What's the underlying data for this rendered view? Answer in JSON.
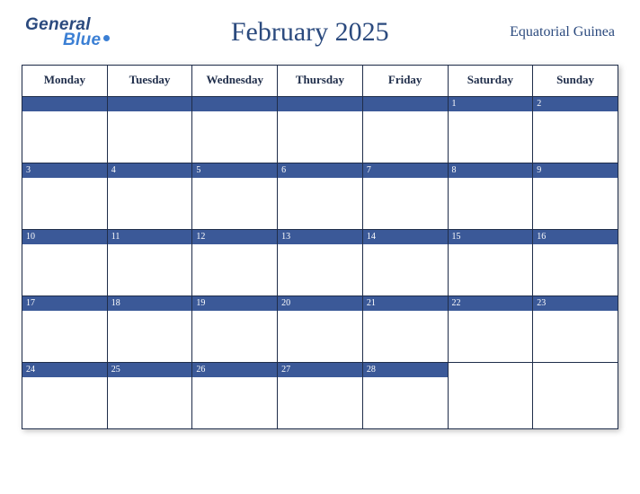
{
  "brand": {
    "top": "General",
    "bottom": "Blue"
  },
  "title": "February 2025",
  "country": "Equatorial Guinea",
  "style": {
    "barColor": "#3b5998",
    "borderColor": "#1f2d4a",
    "titleColor": "#2b4a7e",
    "brandTopColor": "#2b4a7e",
    "brandBottomColor": "#3b7fd4",
    "cellBg": "#ffffff",
    "titleFontSize": 30,
    "dayHeaderFontSize": 13,
    "dateFontSize": 10
  },
  "dayHeaders": [
    "Monday",
    "Tuesday",
    "Wednesday",
    "Thursday",
    "Friday",
    "Saturday",
    "Sunday"
  ],
  "weeks": [
    [
      null,
      null,
      null,
      null,
      null,
      1,
      2
    ],
    [
      3,
      4,
      5,
      6,
      7,
      8,
      9
    ],
    [
      10,
      11,
      12,
      13,
      14,
      15,
      16
    ],
    [
      17,
      18,
      19,
      20,
      21,
      22,
      23
    ],
    [
      24,
      25,
      26,
      27,
      28,
      null,
      null
    ]
  ]
}
